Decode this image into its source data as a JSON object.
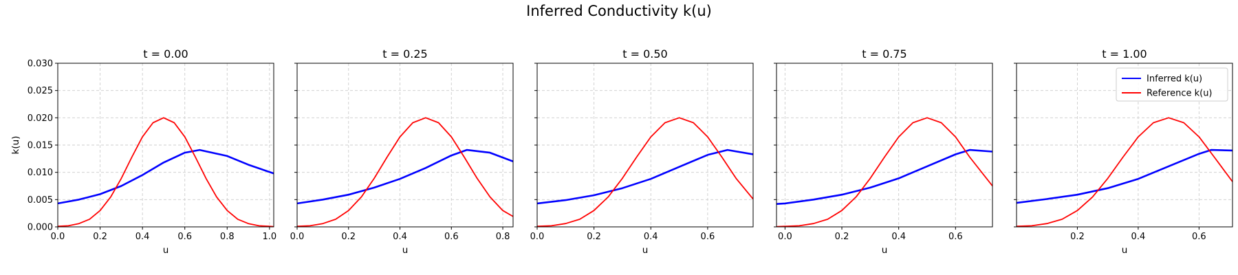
{
  "figure": {
    "title": "Inferred Conductivity k(u)"
  },
  "chart_data": [
    {
      "type": "line",
      "title": "t = 0.00",
      "xlabel": "u",
      "ylabel": "k(u)",
      "xlim": [
        0.0,
        1.02
      ],
      "ylim": [
        0.0,
        0.03
      ],
      "xticks": [
        0.0,
        0.2,
        0.4,
        0.6,
        0.8,
        1.0
      ],
      "xtick_labels": [
        "0.0",
        "0.2",
        "0.4",
        "0.6",
        "0.8",
        "1.0"
      ],
      "yticks": [
        0.0,
        0.005,
        0.01,
        0.015,
        0.02,
        0.025,
        0.03
      ],
      "ytick_labels": [
        "0.000",
        "0.005",
        "0.010",
        "0.015",
        "0.020",
        "0.025",
        "0.030"
      ],
      "grid": true,
      "legend": null,
      "series": [
        {
          "name": "Inferred k(u)",
          "color": "#0000ff",
          "x": [
            0.0,
            0.1,
            0.2,
            0.3,
            0.4,
            0.5,
            0.6,
            0.67,
            0.8,
            0.9,
            1.02
          ],
          "y": [
            0.0043,
            0.005,
            0.006,
            0.0075,
            0.0095,
            0.0118,
            0.0136,
            0.0141,
            0.013,
            0.0114,
            0.0098
          ]
        },
        {
          "name": "Reference k(u)",
          "color": "#ff0000",
          "x": [
            0.0,
            0.05,
            0.1,
            0.15,
            0.2,
            0.25,
            0.3,
            0.35,
            0.4,
            0.45,
            0.5,
            0.55,
            0.6,
            0.65,
            0.7,
            0.75,
            0.8,
            0.85,
            0.9,
            0.95,
            1.0,
            1.02
          ],
          "y": [
            0.0001,
            0.0002,
            0.0006,
            0.0014,
            0.003,
            0.0055,
            0.0089,
            0.0128,
            0.0165,
            0.0191,
            0.02,
            0.0191,
            0.0165,
            0.0128,
            0.0089,
            0.0055,
            0.003,
            0.0014,
            0.0006,
            0.0002,
            0.0001,
            5e-05
          ]
        }
      ]
    },
    {
      "type": "line",
      "title": "t = 0.25",
      "xlabel": "u",
      "ylabel": "",
      "xlim": [
        0.0,
        0.84
      ],
      "ylim": [
        0.0,
        0.03
      ],
      "xticks": [
        0.0,
        0.2,
        0.4,
        0.6,
        0.8
      ],
      "xtick_labels": [
        "0.0",
        "0.2",
        "0.4",
        "0.6",
        "0.8"
      ],
      "yticks": [
        0.0,
        0.005,
        0.01,
        0.015,
        0.02,
        0.025,
        0.03
      ],
      "ytick_labels": [],
      "grid": true,
      "legend": null,
      "series": [
        {
          "name": "Inferred k(u)",
          "color": "#0000ff",
          "x": [
            0.0,
            0.1,
            0.2,
            0.3,
            0.4,
            0.5,
            0.6,
            0.66,
            0.75,
            0.84
          ],
          "y": [
            0.0043,
            0.005,
            0.0059,
            0.0072,
            0.0088,
            0.0108,
            0.0131,
            0.0141,
            0.0136,
            0.012
          ]
        },
        {
          "name": "Reference k(u)",
          "color": "#ff0000",
          "x": [
            0.0,
            0.05,
            0.1,
            0.15,
            0.2,
            0.25,
            0.3,
            0.35,
            0.4,
            0.45,
            0.5,
            0.55,
            0.6,
            0.65,
            0.7,
            0.75,
            0.8,
            0.84
          ],
          "y": [
            0.0001,
            0.0002,
            0.0006,
            0.0014,
            0.003,
            0.0055,
            0.0089,
            0.0128,
            0.0165,
            0.0191,
            0.02,
            0.0191,
            0.0165,
            0.0128,
            0.0089,
            0.0055,
            0.003,
            0.0019
          ]
        }
      ]
    },
    {
      "type": "line",
      "title": "t = 0.50",
      "xlabel": "u",
      "ylabel": "",
      "xlim": [
        0.0,
        0.76
      ],
      "ylim": [
        0.0,
        0.03
      ],
      "xticks": [
        0.0,
        0.2,
        0.4,
        0.6
      ],
      "xtick_labels": [
        "0.0",
        "0.2",
        "0.4",
        "0.6"
      ],
      "yticks": [
        0.0,
        0.005,
        0.01,
        0.015,
        0.02,
        0.025,
        0.03
      ],
      "ytick_labels": [],
      "grid": true,
      "legend": null,
      "series": [
        {
          "name": "Inferred k(u)",
          "color": "#0000ff",
          "x": [
            0.0,
            0.1,
            0.2,
            0.3,
            0.4,
            0.5,
            0.6,
            0.67,
            0.76
          ],
          "y": [
            0.0043,
            0.0049,
            0.0058,
            0.0071,
            0.0088,
            0.011,
            0.0132,
            0.0141,
            0.0133
          ]
        },
        {
          "name": "Reference k(u)",
          "color": "#ff0000",
          "x": [
            0.0,
            0.05,
            0.1,
            0.15,
            0.2,
            0.25,
            0.3,
            0.35,
            0.4,
            0.45,
            0.5,
            0.55,
            0.6,
            0.65,
            0.7,
            0.76
          ],
          "y": [
            0.0001,
            0.0002,
            0.0006,
            0.0014,
            0.003,
            0.0055,
            0.0089,
            0.0128,
            0.0165,
            0.0191,
            0.02,
            0.0191,
            0.0165,
            0.0128,
            0.0089,
            0.0051
          ]
        }
      ]
    },
    {
      "type": "line",
      "title": "t = 0.75",
      "xlabel": "u",
      "ylabel": "",
      "xlim": [
        -0.03,
        0.73
      ],
      "ylim": [
        0.0,
        0.03
      ],
      "xticks": [
        0.0,
        0.2,
        0.4,
        0.6
      ],
      "xtick_labels": [
        "0.0",
        "0.2",
        "0.4",
        "0.6"
      ],
      "yticks": [
        0.0,
        0.005,
        0.01,
        0.015,
        0.02,
        0.025,
        0.03
      ],
      "ytick_labels": [],
      "grid": true,
      "legend": null,
      "series": [
        {
          "name": "Inferred k(u)",
          "color": "#0000ff",
          "x": [
            -0.03,
            0.0,
            0.1,
            0.2,
            0.3,
            0.4,
            0.5,
            0.6,
            0.65,
            0.73
          ],
          "y": [
            0.0042,
            0.0043,
            0.005,
            0.0059,
            0.0072,
            0.0089,
            0.0111,
            0.0133,
            0.0141,
            0.0138
          ]
        },
        {
          "name": "Reference k(u)",
          "color": "#ff0000",
          "x": [
            -0.03,
            0.0,
            0.05,
            0.1,
            0.15,
            0.2,
            0.25,
            0.3,
            0.35,
            0.4,
            0.45,
            0.5,
            0.55,
            0.6,
            0.65,
            0.73
          ],
          "y": [
            5e-05,
            0.0001,
            0.0002,
            0.0006,
            0.0014,
            0.003,
            0.0055,
            0.0089,
            0.0128,
            0.0165,
            0.0191,
            0.02,
            0.0191,
            0.0165,
            0.0128,
            0.0075
          ]
        }
      ]
    },
    {
      "type": "line",
      "title": "t = 1.00",
      "xlabel": "u",
      "ylabel": "",
      "xlim": [
        0.0,
        0.71
      ],
      "ylim": [
        0.0,
        0.03
      ],
      "xticks": [
        0.2,
        0.4,
        0.6
      ],
      "xtick_labels": [
        "0.2",
        "0.4",
        "0.6"
      ],
      "yticks": [
        0.0,
        0.005,
        0.01,
        0.015,
        0.02,
        0.025,
        0.03
      ],
      "ytick_labels": [],
      "grid": true,
      "legend": "top-right",
      "series": [
        {
          "name": "Inferred k(u)",
          "color": "#0000ff",
          "x": [
            0.0,
            0.1,
            0.2,
            0.3,
            0.4,
            0.5,
            0.6,
            0.64,
            0.71
          ],
          "y": [
            0.0044,
            0.0051,
            0.0059,
            0.0071,
            0.0088,
            0.0111,
            0.0134,
            0.0141,
            0.014
          ]
        },
        {
          "name": "Reference k(u)",
          "color": "#ff0000",
          "x": [
            0.0,
            0.05,
            0.1,
            0.15,
            0.2,
            0.25,
            0.3,
            0.35,
            0.4,
            0.45,
            0.5,
            0.55,
            0.6,
            0.65,
            0.71
          ],
          "y": [
            0.0001,
            0.0002,
            0.0006,
            0.0014,
            0.003,
            0.0055,
            0.0089,
            0.0128,
            0.0165,
            0.0191,
            0.02,
            0.0191,
            0.0165,
            0.0128,
            0.0083
          ]
        }
      ]
    }
  ]
}
